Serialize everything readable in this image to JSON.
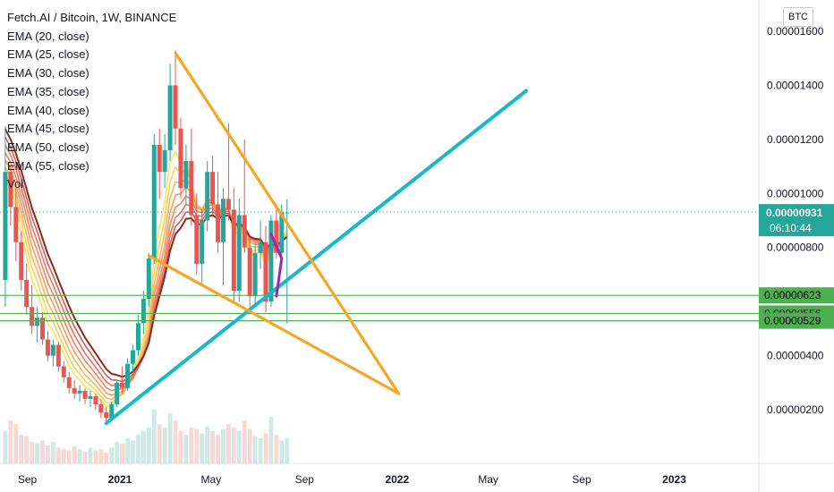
{
  "header": {
    "title": "Fetch.AI / Bitcoin, 1W, BINANCE",
    "indicators": [
      "EMA (20, close)",
      "EMA (25, close)",
      "EMA (30, close)",
      "EMA (35, close)",
      "EMA (40, close)",
      "EMA (45, close)",
      "EMA (50, close)",
      "EMA (55, close)",
      "Vol"
    ],
    "currency_button": "BTC"
  },
  "price_tag": {
    "price": "0.00000931",
    "countdown": "06:10:44",
    "value": 9.31e-06,
    "color": "#26a69a"
  },
  "levels": [
    {
      "label": "0.00000623",
      "value": 6.23e-06
    },
    {
      "label": "0.00000556",
      "value": 5.56e-06
    },
    {
      "label": "0.00000529",
      "value": 5.29e-06
    }
  ],
  "colors": {
    "up": "#26a69a",
    "down": "#ef5350",
    "triangle": "#f5a623",
    "trendline": "#17b8c8",
    "levels": "#4caf50",
    "wedge": "#9c27b0"
  },
  "chart_data": {
    "type": "candlestick",
    "yaxis": {
      "min": 0,
      "max": 1.7e-05,
      "ticks": [
        "0.00000200",
        "0.00000400",
        "0.00000800",
        "0.00001000",
        "0.00001200",
        "0.00001400",
        "0.00001600"
      ],
      "tick_values": [
        2e-06,
        4e-06,
        8e-06,
        1e-05,
        1.2e-05,
        1.4e-05,
        1.6e-05
      ]
    },
    "xaxis": {
      "ticks": [
        "Sep",
        "2021",
        "May",
        "Sep",
        "2022",
        "May",
        "Sep",
        "2023"
      ],
      "tick_dates": [
        "2020-09-01",
        "2021-01-01",
        "2021-05-01",
        "2021-09-01",
        "2022-01-01",
        "2022-05-01",
        "2022-09-01",
        "2023-01-01"
      ]
    },
    "candles": [
      {
        "date": "2020-08-03",
        "open": 6.8e-06,
        "high": 1.25e-05,
        "low": 5.8e-06,
        "close": 1.08e-05
      },
      {
        "date": "2020-08-10",
        "open": 1.08e-05,
        "high": 1.1e-05,
        "low": 8.8e-06,
        "close": 9.5e-06
      },
      {
        "date": "2020-08-17",
        "open": 9.5e-06,
        "high": 1.02e-05,
        "low": 7.5e-06,
        "close": 8.2e-06
      },
      {
        "date": "2020-08-24",
        "open": 8.2e-06,
        "high": 8.6e-06,
        "low": 6.4e-06,
        "close": 6.8e-06
      },
      {
        "date": "2020-08-31",
        "open": 6.8e-06,
        "high": 7.4e-06,
        "low": 5.5e-06,
        "close": 5.8e-06
      },
      {
        "date": "2020-09-07",
        "open": 5.8e-06,
        "high": 6.6e-06,
        "low": 4.8e-06,
        "close": 5.1e-06
      },
      {
        "date": "2020-09-14",
        "open": 5.1e-06,
        "high": 5.8e-06,
        "low": 4.5e-06,
        "close": 5.4e-06
      },
      {
        "date": "2020-09-21",
        "open": 5.4e-06,
        "high": 5.6e-06,
        "low": 4.4e-06,
        "close": 4.6e-06
      },
      {
        "date": "2020-09-28",
        "open": 4.6e-06,
        "high": 4.9e-06,
        "low": 3.8e-06,
        "close": 4e-06
      },
      {
        "date": "2020-10-05",
        "open": 4e-06,
        "high": 4.6e-06,
        "low": 3.6e-06,
        "close": 4.4e-06
      },
      {
        "date": "2020-10-12",
        "open": 4.4e-06,
        "high": 4.5e-06,
        "low": 3.4e-06,
        "close": 3.6e-06
      },
      {
        "date": "2020-10-19",
        "open": 3.6e-06,
        "high": 3.8e-06,
        "low": 3e-06,
        "close": 3.2e-06
      },
      {
        "date": "2020-10-26",
        "open": 3.2e-06,
        "high": 3.4e-06,
        "low": 2.6e-06,
        "close": 2.8e-06
      },
      {
        "date": "2020-11-02",
        "open": 2.8e-06,
        "high": 3.1e-06,
        "low": 2.4e-06,
        "close": 2.6e-06
      },
      {
        "date": "2020-11-09",
        "open": 2.6e-06,
        "high": 2.9e-06,
        "low": 2.3e-06,
        "close": 2.7e-06
      },
      {
        "date": "2020-11-16",
        "open": 2.7e-06,
        "high": 2.8e-06,
        "low": 2.2e-06,
        "close": 2.4e-06
      },
      {
        "date": "2020-11-23",
        "open": 2.4e-06,
        "high": 2.7e-06,
        "low": 2.1e-06,
        "close": 2.5e-06
      },
      {
        "date": "2020-11-30",
        "open": 2.5e-06,
        "high": 2.6e-06,
        "low": 2e-06,
        "close": 2.2e-06
      },
      {
        "date": "2020-12-07",
        "open": 2.2e-06,
        "high": 2.4e-06,
        "low": 1.7e-06,
        "close": 1.9e-06
      },
      {
        "date": "2020-12-14",
        "open": 1.9e-06,
        "high": 2.1e-06,
        "low": 1.5e-06,
        "close": 1.7e-06
      },
      {
        "date": "2020-12-21",
        "open": 1.7e-06,
        "high": 2.3e-06,
        "low": 1.6e-06,
        "close": 2.2e-06
      },
      {
        "date": "2020-12-28",
        "open": 2.2e-06,
        "high": 3.1e-06,
        "low": 2.1e-06,
        "close": 3e-06
      },
      {
        "date": "2021-01-04",
        "open": 3e-06,
        "high": 3.6e-06,
        "low": 2.6e-06,
        "close": 2.8e-06
      },
      {
        "date": "2021-01-11",
        "open": 2.8e-06,
        "high": 3.9e-06,
        "low": 2.7e-06,
        "close": 3.7e-06
      },
      {
        "date": "2021-01-18",
        "open": 3.7e-06,
        "high": 4.4e-06,
        "low": 3.4e-06,
        "close": 4.2e-06
      },
      {
        "date": "2021-01-25",
        "open": 4.2e-06,
        "high": 5.5e-06,
        "low": 4e-06,
        "close": 5.2e-06
      },
      {
        "date": "2021-02-01",
        "open": 5.2e-06,
        "high": 6.4e-06,
        "low": 4.8e-06,
        "close": 6.1e-06
      },
      {
        "date": "2021-02-08",
        "open": 6.1e-06,
        "high": 7.8e-06,
        "low": 5.8e-06,
        "close": 7.6e-06
      },
      {
        "date": "2021-02-15",
        "open": 7.6e-06,
        "high": 1.22e-05,
        "low": 7.4e-06,
        "close": 1.18e-05
      },
      {
        "date": "2021-02-22",
        "open": 1.18e-05,
        "high": 1.24e-05,
        "low": 9.8e-06,
        "close": 1.08e-05
      },
      {
        "date": "2021-03-01",
        "open": 1.08e-05,
        "high": 1.22e-05,
        "low": 1.02e-05,
        "close": 1.16e-05
      },
      {
        "date": "2021-03-08",
        "open": 1.16e-05,
        "high": 1.48e-05,
        "low": 1.12e-05,
        "close": 1.4e-05
      },
      {
        "date": "2021-03-15",
        "open": 1.4e-05,
        "high": 1.53e-05,
        "low": 1.18e-05,
        "close": 1.24e-05
      },
      {
        "date": "2021-03-22",
        "open": 1.24e-05,
        "high": 1.28e-05,
        "low": 9.8e-06,
        "close": 1.02e-05
      },
      {
        "date": "2021-03-29",
        "open": 1.02e-05,
        "high": 1.18e-05,
        "low": 9.6e-06,
        "close": 1.12e-05
      },
      {
        "date": "2021-04-05",
        "open": 1.12e-05,
        "high": 1.24e-05,
        "low": 8.8e-06,
        "close": 9.2e-06
      },
      {
        "date": "2021-04-12",
        "open": 9.2e-06,
        "high": 1e-05,
        "low": 7e-06,
        "close": 7.4e-06
      },
      {
        "date": "2021-04-19",
        "open": 7.4e-06,
        "high": 9.4e-06,
        "low": 6.6e-06,
        "close": 9e-06
      },
      {
        "date": "2021-04-26",
        "open": 9e-06,
        "high": 1.12e-05,
        "low": 8.6e-06,
        "close": 1.08e-05
      },
      {
        "date": "2021-05-03",
        "open": 1.08e-05,
        "high": 1.14e-05,
        "low": 9.2e-06,
        "close": 9.6e-06
      },
      {
        "date": "2021-05-10",
        "open": 9.6e-06,
        "high": 1.08e-05,
        "low": 7.8e-06,
        "close": 8.2e-06
      },
      {
        "date": "2021-05-17",
        "open": 8.2e-06,
        "high": 1.02e-05,
        "low": 6.6e-06,
        "close": 9.8e-06
      },
      {
        "date": "2021-05-24",
        "open": 9.8e-06,
        "high": 1.26e-05,
        "low": 9e-06,
        "close": 9.4e-06
      },
      {
        "date": "2021-05-31",
        "open": 9.4e-06,
        "high": 1.02e-05,
        "low": 6e-06,
        "close": 6.4e-06
      },
      {
        "date": "2021-06-07",
        "open": 6.4e-06,
        "high": 9.8e-06,
        "low": 6e-06,
        "close": 9.2e-06
      },
      {
        "date": "2021-06-14",
        "open": 9.2e-06,
        "high": 1.2e-05,
        "low": 7.8e-06,
        "close": 8e-06
      },
      {
        "date": "2021-06-21",
        "open": 8e-06,
        "high": 8.4e-06,
        "low": 5.8e-06,
        "close": 6.2e-06
      },
      {
        "date": "2021-06-28",
        "open": 6.2e-06,
        "high": 8.2e-06,
        "low": 5.8e-06,
        "close": 7.8e-06
      },
      {
        "date": "2021-07-05",
        "open": 7.8e-06,
        "high": 9e-06,
        "low": 7.2e-06,
        "close": 8.2e-06
      },
      {
        "date": "2021-07-12",
        "open": 8.2e-06,
        "high": 8.8e-06,
        "low": 5.6e-06,
        "close": 6e-06
      },
      {
        "date": "2021-07-19",
        "open": 6e-06,
        "high": 9.2e-06,
        "low": 5.8e-06,
        "close": 9e-06
      },
      {
        "date": "2021-07-26",
        "open": 9e-06,
        "high": 9.6e-06,
        "low": 7.6e-06,
        "close": 7.8e-06
      },
      {
        "date": "2021-08-02",
        "open": 7.8e-06,
        "high": 9.6e-06,
        "low": 7.4e-06,
        "close": 9.3e-06
      },
      {
        "date": "2021-08-09",
        "open": 9.3e-06,
        "high": 9.8e-06,
        "low": 5.2e-06,
        "close": 9.3e-06
      }
    ],
    "volume": [
      0.45,
      0.6,
      0.55,
      0.4,
      0.38,
      0.3,
      0.28,
      0.32,
      0.25,
      0.3,
      0.22,
      0.2,
      0.18,
      0.24,
      0.2,
      0.16,
      0.22,
      0.18,
      0.2,
      0.15,
      0.22,
      0.3,
      0.28,
      0.35,
      0.32,
      0.4,
      0.45,
      0.5,
      0.75,
      0.55,
      0.5,
      0.7,
      0.6,
      0.45,
      0.4,
      0.5,
      0.48,
      0.42,
      0.52,
      0.45,
      0.4,
      0.48,
      0.55,
      0.5,
      0.45,
      0.6,
      0.48,
      0.38,
      0.35,
      0.42,
      0.65,
      0.4,
      0.32,
      0.35
    ],
    "ema_colors": [
      "#f7e463",
      "#f9d15a",
      "#f8b65c",
      "#f59d60",
      "#f18663",
      "#ec7362",
      "#d6605a",
      "#8b2a1c"
    ],
    "annotations": {
      "triangle_upper": [
        {
          "date": "2021-03-15",
          "price": 1.52e-05
        },
        {
          "date": "2022-01-03",
          "price": 2.6e-06
        }
      ],
      "triangle_lower": [
        {
          "date": "2021-02-08",
          "price": 7.7e-06
        },
        {
          "date": "2022-01-03",
          "price": 2.6e-06
        }
      ],
      "trendline": [
        {
          "date": "2020-12-14",
          "price": 1.5e-06
        },
        {
          "date": "2022-06-20",
          "price": 1.38e-05
        }
      ],
      "wedge": [
        {
          "date": "2021-07-19",
          "price": 8.5e-06
        },
        {
          "date": "2021-08-02",
          "price": 7.6e-06
        },
        {
          "date": "2021-07-26",
          "price": 6.2e-06
        }
      ]
    }
  }
}
